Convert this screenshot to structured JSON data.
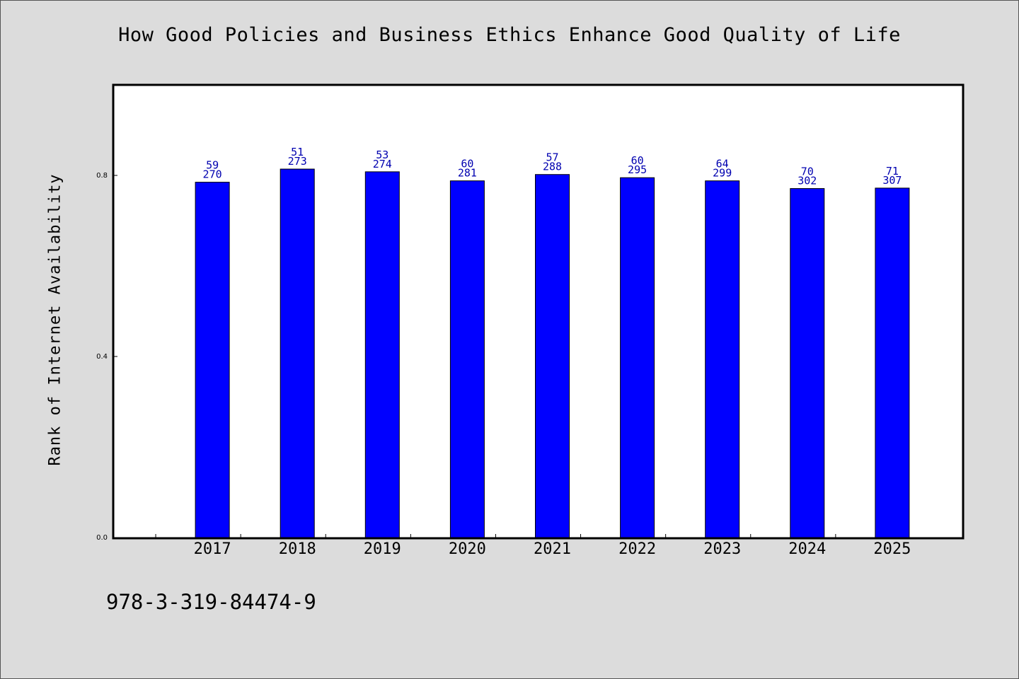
{
  "footer_text": "978-3-319-84474-9",
  "chart_data": {
    "type": "bar",
    "title": "How Good Policies and Business Ethics Enhance Good Quality of Life",
    "xlabel": "",
    "ylabel": "Rank of Internet Availability",
    "ylim": [
      0,
      1
    ],
    "yticks": [
      "0.0",
      "0.4",
      "0.8"
    ],
    "grid": false,
    "bar_color": "#0000ff",
    "label_color": "#0000b0",
    "categories": [
      "2017",
      "2018",
      "2019",
      "2020",
      "2021",
      "2022",
      "2023",
      "2024",
      "2025"
    ],
    "values": [
      0.785,
      0.814,
      0.808,
      0.788,
      0.802,
      0.795,
      0.788,
      0.771,
      0.772
    ],
    "labels_top": [
      "59",
      "51",
      "53",
      "60",
      "57",
      "60",
      "64",
      "70",
      "71"
    ],
    "labels_bottom": [
      "270",
      "273",
      "274",
      "281",
      "288",
      "295",
      "299",
      "302",
      "307"
    ]
  }
}
